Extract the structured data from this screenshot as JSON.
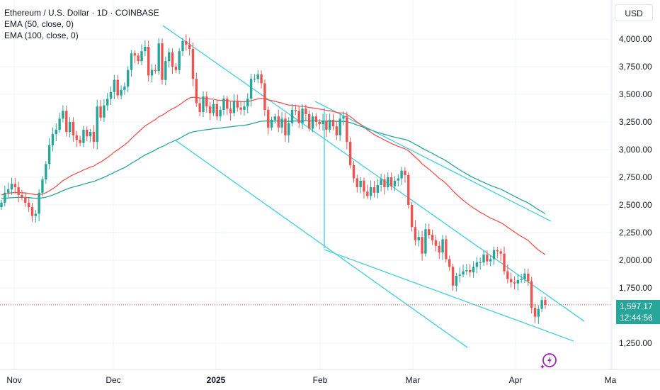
{
  "header": {
    "title": "Ethereum / U.S. Dollar · 1D · COINBASE",
    "indicators": [
      "EMA (50, close, 0)",
      "EMA (100, close, 0)"
    ]
  },
  "currency_label": "USD",
  "last_price": {
    "price": "1,597.17",
    "countdown": "12:44:56"
  },
  "colors": {
    "up": "#26a69a",
    "down": "#ef5350",
    "ema50": "#f0534f",
    "ema100": "#26a69a",
    "trendline": "#4dd0e1",
    "price_line": "#ef5350"
  },
  "chart_data": {
    "type": "candlestick",
    "symbol": "ETHUSD",
    "interval": "1D",
    "exchange": "COINBASE",
    "x_tick_labels": [
      "Nov",
      "Dec",
      "2025",
      "Feb",
      "Mar",
      "Apr",
      "Ma"
    ],
    "y_tick_labels": [
      "4,000.00",
      "3,750.00",
      "3,500.00",
      "3,250.00",
      "3,000.00",
      "2,750.00",
      "2,500.00",
      "2,250.00",
      "2,000.00",
      "1,750.00",
      "1,250.00"
    ],
    "ylim": [
      1100,
      4300
    ],
    "candles_close": [
      2520,
      2610,
      2640,
      2690,
      2660,
      2590,
      2570,
      2520,
      2480,
      2400,
      2420,
      2610,
      2730,
      2870,
      3040,
      3140,
      3180,
      3280,
      3350,
      3160,
      3250,
      3130,
      3090,
      3060,
      3180,
      3120,
      3160,
      3070,
      3390,
      3290,
      3400,
      3460,
      3520,
      3630,
      3490,
      3540,
      3570,
      3720,
      3870,
      3850,
      3800,
      3890,
      3930,
      3670,
      3720,
      3710,
      3960,
      3630,
      3800,
      3880,
      3750,
      3720,
      3890,
      3980,
      3950,
      3910,
      3640,
      3420,
      3340,
      3480,
      3390,
      3330,
      3410,
      3300,
      3360,
      3460,
      3370,
      3330,
      3440,
      3380,
      3360,
      3390,
      3460,
      3640,
      3640,
      3680,
      3600,
      3360,
      3200,
      3270,
      3300,
      3200,
      3280,
      3130,
      3240,
      3360,
      3350,
      3240,
      3370,
      3320,
      3190,
      3300,
      3250,
      3230,
      3260,
      3180,
      3270,
      3210,
      3130,
      3280,
      3300,
      3070,
      2860,
      2740,
      2660,
      2720,
      2620,
      2580,
      2660,
      2610,
      2680,
      2730,
      2660,
      2750,
      2670,
      2720,
      2740,
      2810,
      2770,
      2500,
      2300,
      2180,
      2210,
      2060,
      2280,
      2230,
      2180,
      2130,
      2070,
      2190,
      2010,
      1940,
      1770,
      1860,
      1870,
      1900,
      1910,
      1890,
      1940,
      1980,
      1980,
      2050,
      1990,
      2010,
      2090,
      2080,
      2060,
      1900,
      1830,
      1800,
      1790,
      1820,
      1830,
      1880,
      1810,
      1570,
      1490,
      1560,
      1640,
      1597.17
    ],
    "series": [
      {
        "name": "EMA (50, close, 0)",
        "values": [
          2590,
          2600,
          2605,
          2610,
          2612,
          2612,
          2610,
          2608,
          2605,
          2598,
          2593,
          2594,
          2599,
          2610,
          2627,
          2647,
          2668,
          2693,
          2719,
          2737,
          2758,
          2773,
          2787,
          2800,
          2816,
          2828,
          2842,
          2851,
          2872,
          2888,
          2908,
          2929,
          2952,
          2978,
          2998,
          3020,
          3042,
          3068,
          3100,
          3130,
          3157,
          3186,
          3215,
          3233,
          3253,
          3271,
          3298,
          3311,
          3331,
          3353,
          3369,
          3384,
          3404,
          3427,
          3448,
          3467,
          3474,
          3472,
          3467,
          3467,
          3464,
          3458,
          3456,
          3449,
          3445,
          3446,
          3443,
          3439,
          3439,
          3437,
          3434,
          3433,
          3434,
          3442,
          3450,
          3459,
          3465,
          3460,
          3450,
          3443,
          3437,
          3428,
          3422,
          3410,
          3403,
          3401,
          3399,
          3392,
          3391,
          3388,
          3380,
          3377,
          3372,
          3366,
          3362,
          3355,
          3351,
          3345,
          3336,
          3333,
          3331,
          3318,
          3298,
          3275,
          3249,
          3228,
          3203,
          3178,
          3158,
          3136,
          3119,
          3104,
          3086,
          3072,
          3056,
          3042,
          3029,
          3019,
          3008,
          2989,
          2962,
          2932,
          2904,
          2871,
          2847,
          2822,
          2796,
          2769,
          2741,
          2720,
          2692,
          2662,
          2627,
          2597,
          2569,
          2543,
          2518,
          2494,
          2473,
          2453,
          2433,
          2417,
          2398,
          2381,
          2368,
          2354,
          2340,
          2320,
          2298,
          2276,
          2255,
          2235,
          2215,
          2198,
          2178,
          2149,
          2119,
          2093,
          2071,
          2050
        ]
      },
      {
        "name": "EMA (100, close, 0)",
        "values": [
          2560,
          2561,
          2563,
          2565,
          2567,
          2568,
          2568,
          2567,
          2566,
          2563,
          2560,
          2561,
          2564,
          2570,
          2579,
          2590,
          2602,
          2615,
          2630,
          2641,
          2653,
          2662,
          2670,
          2678,
          2688,
          2696,
          2705,
          2711,
          2725,
          2737,
          2750,
          2764,
          2778,
          2795,
          2809,
          2824,
          2838,
          2856,
          2876,
          2895,
          2913,
          2932,
          2952,
          2966,
          2981,
          2996,
          3015,
          3027,
          3042,
          3059,
          3072,
          3085,
          3100,
          3118,
          3135,
          3151,
          3161,
          3166,
          3170,
          3176,
          3181,
          3184,
          3189,
          3191,
          3195,
          3200,
          3203,
          3206,
          3211,
          3214,
          3217,
          3220,
          3225,
          3233,
          3241,
          3250,
          3257,
          3259,
          3258,
          3258,
          3259,
          3258,
          3258,
          3256,
          3255,
          3257,
          3259,
          3258,
          3260,
          3261,
          3259,
          3260,
          3260,
          3259,
          3259,
          3258,
          3258,
          3257,
          3255,
          3256,
          3256,
          3252,
          3244,
          3234,
          3222,
          3212,
          3200,
          3188,
          3178,
          3166,
          3156,
          3148,
          3138,
          3130,
          3120,
          3112,
          3105,
          3099,
          3093,
          3081,
          3066,
          3048,
          3032,
          3012,
          2997,
          2982,
          2966,
          2948,
          2931,
          2917,
          2898,
          2879,
          2857,
          2837,
          2817,
          2798,
          2780,
          2763,
          2747,
          2732,
          2717,
          2704,
          2689,
          2676,
          2665,
          2653,
          2642,
          2627,
          2611,
          2594,
          2578,
          2562,
          2547,
          2533,
          2518,
          2498,
          2477,
          2457,
          2439,
          2421
        ]
      }
    ],
    "trendlines": "descending channel / falling wedge trendlines drawn in light cyan",
    "price_line": "dotted horizontal line at last price 1,597.17"
  }
}
